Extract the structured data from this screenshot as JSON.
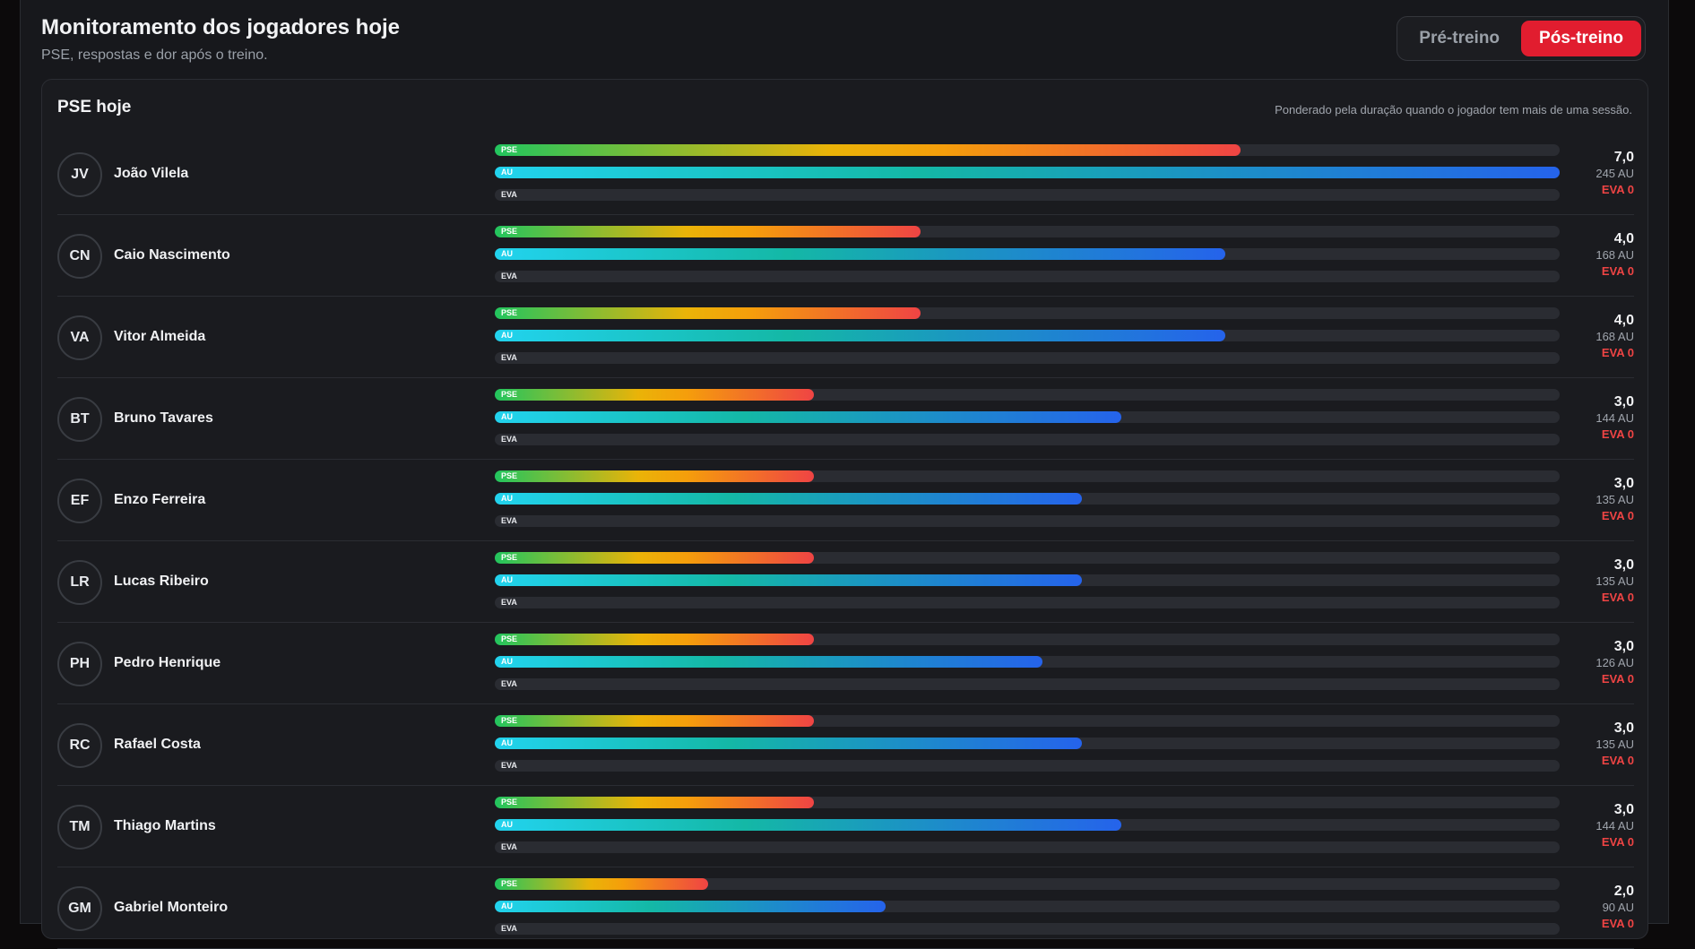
{
  "header": {
    "title": "Monitoramento dos jogadores hoje",
    "subtitle": "PSE, respostas e dor após o treino."
  },
  "toggle": {
    "pre_label": "Pré-treino",
    "post_label": "Pós-treino",
    "selected": "post"
  },
  "card": {
    "title": "PSE hoje",
    "note": "Ponderado pela duração quando o jogador tem mais de uma sessão."
  },
  "bar_labels": {
    "pse": "PSE",
    "au": "AU",
    "eva": "EVA"
  },
  "colors": {
    "accent": "#e11d2f",
    "eva_text": "#ef4444"
  },
  "players": [
    {
      "initials": "JV",
      "name": "João Vilela",
      "pse": "7,0",
      "au": "245 AU",
      "eva": "EVA 0",
      "pse_fill": 0.7,
      "au_fill": 1.0,
      "eva_fill": 0
    },
    {
      "initials": "CN",
      "name": "Caio Nascimento",
      "pse": "4,0",
      "au": "168 AU",
      "eva": "EVA 0",
      "pse_fill": 0.4,
      "au_fill": 0.686,
      "eva_fill": 0
    },
    {
      "initials": "VA",
      "name": "Vitor Almeida",
      "pse": "4,0",
      "au": "168 AU",
      "eva": "EVA 0",
      "pse_fill": 0.4,
      "au_fill": 0.686,
      "eva_fill": 0
    },
    {
      "initials": "BT",
      "name": "Bruno Tavares",
      "pse": "3,0",
      "au": "144 AU",
      "eva": "EVA 0",
      "pse_fill": 0.3,
      "au_fill": 0.588,
      "eva_fill": 0
    },
    {
      "initials": "EF",
      "name": "Enzo Ferreira",
      "pse": "3,0",
      "au": "135 AU",
      "eva": "EVA 0",
      "pse_fill": 0.3,
      "au_fill": 0.551,
      "eva_fill": 0
    },
    {
      "initials": "LR",
      "name": "Lucas Ribeiro",
      "pse": "3,0",
      "au": "135 AU",
      "eva": "EVA 0",
      "pse_fill": 0.3,
      "au_fill": 0.551,
      "eva_fill": 0
    },
    {
      "initials": "PH",
      "name": "Pedro Henrique",
      "pse": "3,0",
      "au": "126 AU",
      "eva": "EVA 0",
      "pse_fill": 0.3,
      "au_fill": 0.514,
      "eva_fill": 0
    },
    {
      "initials": "RC",
      "name": "Rafael Costa",
      "pse": "3,0",
      "au": "135 AU",
      "eva": "EVA 0",
      "pse_fill": 0.3,
      "au_fill": 0.551,
      "eva_fill": 0
    },
    {
      "initials": "TM",
      "name": "Thiago Martins",
      "pse": "3,0",
      "au": "144 AU",
      "eva": "EVA 0",
      "pse_fill": 0.3,
      "au_fill": 0.588,
      "eva_fill": 0
    },
    {
      "initials": "GM",
      "name": "Gabriel Monteiro",
      "pse": "2,0",
      "au": "90 AU",
      "eva": "EVA 0",
      "pse_fill": 0.2,
      "au_fill": 0.367,
      "eva_fill": 0
    }
  ]
}
